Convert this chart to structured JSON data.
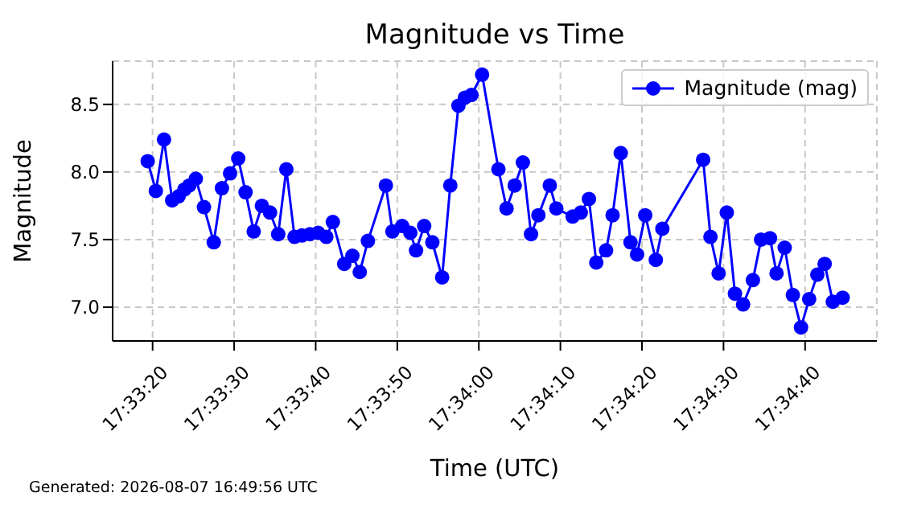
{
  "chart_data": {
    "type": "line",
    "title": "Magnitude vs Time",
    "xlabel": "Time (UTC)",
    "ylabel": "Magnitude",
    "annotations": [
      "Generated: 2026-08-07 16:49:56 UTC"
    ],
    "x": [
      "2026-08-07T17:33:19.4",
      "2026-08-07T17:33:20.4",
      "2026-08-07T17:33:21.4",
      "2026-08-07T17:33:22.4",
      "2026-08-07T17:33:23.2",
      "2026-08-07T17:33:23.9",
      "2026-08-07T17:33:24.5",
      "2026-08-07T17:33:25.3",
      "2026-08-07T17:33:26.3",
      "2026-08-07T17:33:27.5",
      "2026-08-07T17:33:28.5",
      "2026-08-07T17:33:29.5",
      "2026-08-07T17:33:30.5",
      "2026-08-07T17:33:31.4",
      "2026-08-07T17:33:32.4",
      "2026-08-07T17:33:33.4",
      "2026-08-07T17:33:34.4",
      "2026-08-07T17:33:35.4",
      "2026-08-07T17:33:36.4",
      "2026-08-07T17:33:37.4",
      "2026-08-07T17:33:38.3",
      "2026-08-07T17:33:39.3",
      "2026-08-07T17:33:40.3",
      "2026-08-07T17:33:41.3",
      "2026-08-07T17:33:42.1",
      "2026-08-07T17:33:43.5",
      "2026-08-07T17:33:44.5",
      "2026-08-07T17:33:45.4",
      "2026-08-07T17:33:46.4",
      "2026-08-07T17:33:48.6",
      "2026-08-07T17:33:49.4",
      "2026-08-07T17:33:50.6",
      "2026-08-07T17:33:51.6",
      "2026-08-07T17:33:52.3",
      "2026-08-07T17:33:53.3",
      "2026-08-07T17:33:54.3",
      "2026-08-07T17:33:55.5",
      "2026-08-07T17:33:56.5",
      "2026-08-07T17:33:57.5",
      "2026-08-07T17:33:58.3",
      "2026-08-07T17:33:59.1",
      "2026-08-07T17:34:00.4",
      "2026-08-07T17:34:02.4",
      "2026-08-07T17:34:03.4",
      "2026-08-07T17:34:04.4",
      "2026-08-07T17:34:05.4",
      "2026-08-07T17:34:06.4",
      "2026-08-07T17:34:07.3",
      "2026-08-07T17:34:08.7",
      "2026-08-07T17:34:09.5",
      "2026-08-07T17:34:11.5",
      "2026-08-07T17:34:12.5",
      "2026-08-07T17:34:13.5",
      "2026-08-07T17:34:14.4",
      "2026-08-07T17:34:15.6",
      "2026-08-07T17:34:16.4",
      "2026-08-07T17:34:17.4",
      "2026-08-07T17:34:18.6",
      "2026-08-07T17:34:19.4",
      "2026-08-07T17:34:20.4",
      "2026-08-07T17:34:21.7",
      "2026-08-07T17:34:22.5",
      "2026-08-07T17:34:27.5",
      "2026-08-07T17:34:28.4",
      "2026-08-07T17:34:29.4",
      "2026-08-07T17:34:30.4",
      "2026-08-07T17:34:31.4",
      "2026-08-07T17:34:32.4",
      "2026-08-07T17:34:33.6",
      "2026-08-07T17:34:34.6",
      "2026-08-07T17:34:35.7",
      "2026-08-07T17:34:36.5",
      "2026-08-07T17:34:37.5",
      "2026-08-07T17:34:38.5",
      "2026-08-07T17:34:39.5",
      "2026-08-07T17:34:40.5",
      "2026-08-07T17:34:41.5",
      "2026-08-07T17:34:42.4",
      "2026-08-07T17:34:43.4",
      "2026-08-07T17:34:44.6"
    ],
    "series": [
      {
        "name": "Magnitude (mag)",
        "color": "#0000ff",
        "values": [
          8.08,
          7.86,
          8.24,
          7.79,
          7.82,
          7.87,
          7.9,
          7.95,
          7.74,
          7.48,
          7.88,
          7.99,
          8.1,
          7.85,
          7.56,
          7.75,
          7.7,
          7.54,
          8.02,
          7.52,
          7.53,
          7.54,
          7.55,
          7.52,
          7.63,
          7.32,
          7.38,
          7.26,
          7.49,
          7.9,
          7.56,
          7.6,
          7.55,
          7.42,
          7.6,
          7.48,
          7.22,
          7.9,
          8.49,
          8.55,
          8.57,
          8.72,
          8.02,
          7.73,
          7.9,
          8.07,
          7.54,
          7.68,
          7.9,
          7.73,
          7.67,
          7.7,
          7.8,
          7.33,
          7.42,
          7.68,
          8.14,
          7.48,
          7.39,
          7.68,
          7.35,
          7.58,
          8.09,
          7.52,
          7.25,
          7.7,
          7.1,
          7.02,
          7.2,
          7.5,
          7.51,
          7.25,
          7.44,
          7.09,
          6.85,
          7.06,
          7.24,
          7.32,
          7.04,
          7.07
        ]
      }
    ],
    "xlim": [
      "2026-08-07T17:33:15.1",
      "2026-08-07T17:34:48.8"
    ],
    "xticks": [
      {
        "value": "2026-08-07T17:33:20",
        "label": "17:33:20"
      },
      {
        "value": "2026-08-07T17:33:30",
        "label": "17:33:30"
      },
      {
        "value": "2026-08-07T17:33:40",
        "label": "17:33:40"
      },
      {
        "value": "2026-08-07T17:33:50",
        "label": "17:33:50"
      },
      {
        "value": "2026-08-07T17:34:00",
        "label": "17:34:00"
      },
      {
        "value": "2026-08-07T17:34:10",
        "label": "17:34:10"
      },
      {
        "value": "2026-08-07T17:34:20",
        "label": "17:34:20"
      },
      {
        "value": "2026-08-07T17:34:30",
        "label": "17:34:30"
      },
      {
        "value": "2026-08-07T17:34:40",
        "label": "17:34:40"
      }
    ],
    "ylim": [
      6.75,
      8.82
    ],
    "yticks": [
      {
        "value": 7,
        "label": "7.0"
      },
      7.5,
      {
        "value": 8,
        "label": "8.0"
      },
      8.5
    ],
    "grid": true,
    "legend": "top right",
    "marker": "circle",
    "line_style": "solid"
  }
}
